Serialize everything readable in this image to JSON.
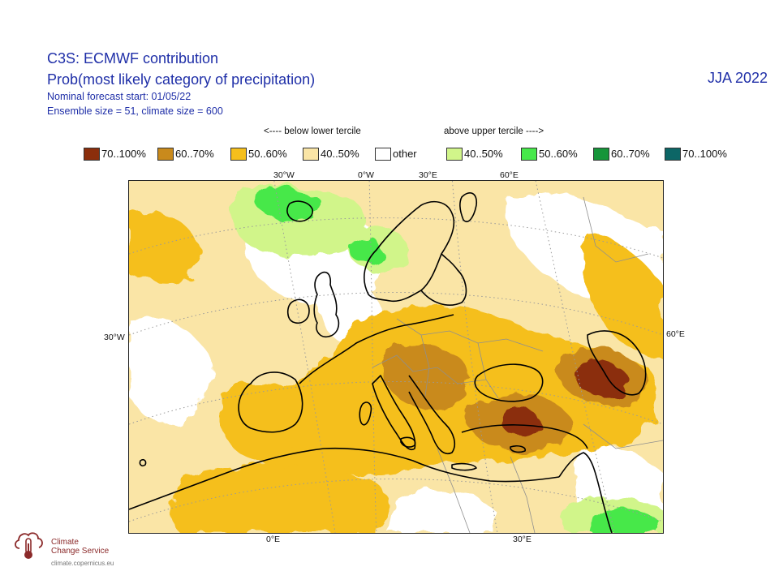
{
  "header": {
    "title": "C3S: ECMWF contribution",
    "subtitle": "Prob(most likely category of precipitation)",
    "forecast_start": "Nominal forecast start: 01/05/22",
    "ensemble": "Ensemble size = 51, climate size = 600",
    "season": "JJA 2022"
  },
  "legend": {
    "below_label": "<---- below lower tercile",
    "above_label": "above upper tercile ---->",
    "items": [
      {
        "label": "70..100%",
        "color": "#8b2e0c"
      },
      {
        "label": "60..70%",
        "color": "#c98a1c"
      },
      {
        "label": "50..60%",
        "color": "#f5bf1c"
      },
      {
        "label": "40..50%",
        "color": "#fae5a6"
      },
      {
        "label": "other",
        "color": "#ffffff"
      },
      {
        "label": "40..50%",
        "color": "#d1f58a"
      },
      {
        "label": "50..60%",
        "color": "#46e84a"
      },
      {
        "label": "60..70%",
        "color": "#16953a"
      },
      {
        "label": "70..100%",
        "color": "#0c6666"
      }
    ]
  },
  "axes": {
    "top": [
      "30°W",
      "0°W",
      "30°E",
      "60°E"
    ],
    "left": "30°W",
    "right": "60°E",
    "bottom": [
      "0°E",
      "30°E"
    ]
  },
  "footer": {
    "logo_line1": "Climate",
    "logo_line2": "Change Service",
    "url": "climate.copernicus.eu"
  }
}
